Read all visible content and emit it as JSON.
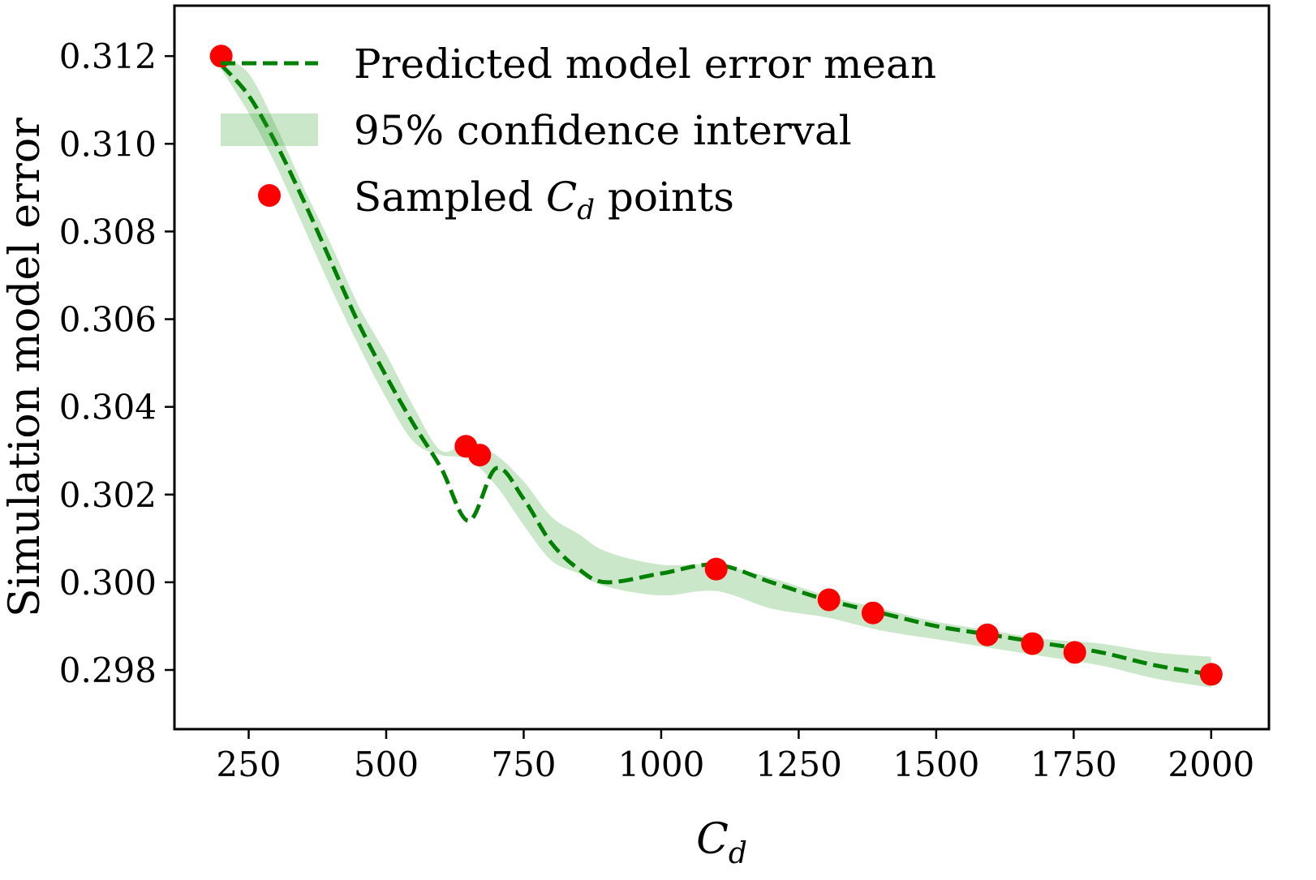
{
  "chart_data": {
    "type": "line",
    "title": "",
    "xlabel": {
      "main": "C",
      "sub": "d"
    },
    "ylabel": "Simulation model error",
    "xlim": [
      115,
      2105
    ],
    "ylim": [
      0.29665,
      0.31315
    ],
    "x_ticks": [
      250,
      500,
      750,
      1000,
      1250,
      1500,
      1750,
      2000
    ],
    "x_tick_labels": [
      "250",
      "500",
      "750",
      "1000",
      "1250",
      "1500",
      "1750",
      "2000"
    ],
    "y_ticks": [
      0.298,
      0.3,
      0.302,
      0.304,
      0.306,
      0.308,
      0.31,
      0.312
    ],
    "y_tick_labels": [
      "0.298",
      "0.300",
      "0.302",
      "0.304",
      "0.306",
      "0.308",
      "0.310",
      "0.312"
    ],
    "grid": false,
    "legend_position": "top-left",
    "colors": {
      "mean_line": "#008000",
      "band": "#2ca02c",
      "points": "#ff0000"
    },
    "legend": [
      {
        "key": "mean",
        "label": "Predicted model error mean"
      },
      {
        "key": "band",
        "label": "95% confidence interval"
      },
      {
        "key": "points",
        "label_pre": "Sampled ",
        "label_main": "C",
        "label_sub": "d",
        "label_post": " points"
      }
    ],
    "series": [
      {
        "key": "mean",
        "x": [
          200,
          250,
          300,
          350,
          400,
          450,
          500,
          550,
          600,
          650,
          700,
          750,
          800,
          850,
          900,
          1000,
          1100,
          1200,
          1300,
          1400,
          1500,
          1600,
          1700,
          1800,
          1900,
          2000
        ],
        "y": [
          0.3118,
          0.3111,
          0.31,
          0.3087,
          0.3073,
          0.3059,
          0.3047,
          0.3036,
          0.3026,
          0.3014,
          0.3026,
          0.3019,
          0.3009,
          0.3003,
          0.3,
          0.3002,
          0.3004,
          0.3,
          0.2996,
          0.2993,
          0.299,
          0.2988,
          0.2986,
          0.2984,
          0.2981,
          0.2979
        ]
      },
      {
        "key": "band_upper",
        "x": [
          200,
          250,
          300,
          350,
          400,
          450,
          500,
          550,
          600,
          650,
          700,
          750,
          800,
          850,
          900,
          1000,
          1100,
          1200,
          1300,
          1400,
          1500,
          1600,
          1700,
          1800,
          1900,
          2000
        ],
        "y": [
          0.312,
          0.3116,
          0.3104,
          0.309,
          0.3077,
          0.3063,
          0.3052,
          0.304,
          0.303,
          0.3032,
          0.3029,
          0.3023,
          0.3015,
          0.3011,
          0.3007,
          0.3004,
          0.3004,
          0.3001,
          0.2997,
          0.2994,
          0.2991,
          0.2989,
          0.2987,
          0.2986,
          0.2984,
          0.2983
        ]
      },
      {
        "key": "band_lower",
        "x": [
          200,
          250,
          300,
          350,
          400,
          450,
          500,
          550,
          600,
          650,
          700,
          750,
          800,
          850,
          900,
          1000,
          1100,
          1200,
          1300,
          1400,
          1500,
          1600,
          1700,
          1800,
          1900,
          2000
        ],
        "y": [
          0.3117,
          0.3107,
          0.3095,
          0.3081,
          0.3067,
          0.3054,
          0.3042,
          0.3032,
          0.3029,
          0.3028,
          0.3022,
          0.3013,
          0.3005,
          0.3002,
          0.2999,
          0.2997,
          0.2998,
          0.2994,
          0.2992,
          0.2989,
          0.2987,
          0.2985,
          0.2983,
          0.2981,
          0.2978,
          0.2976
        ]
      },
      {
        "key": "points",
        "x": [
          200,
          645,
          670,
          1100,
          1305,
          1385,
          1593,
          1675,
          1752,
          2000
        ],
        "y": [
          0.312,
          0.3031,
          0.3029,
          0.3003,
          0.2996,
          0.2993,
          0.2988,
          0.2986,
          0.2984,
          0.2979
        ]
      }
    ]
  }
}
